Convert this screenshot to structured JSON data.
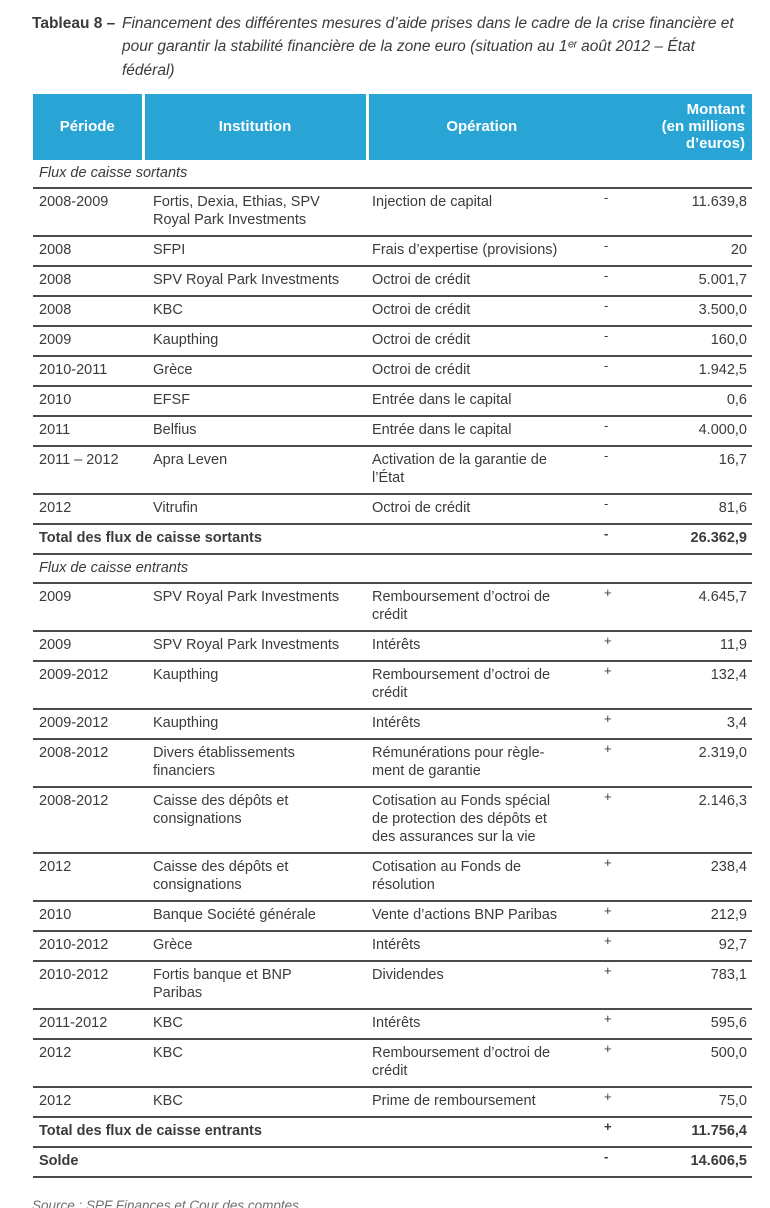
{
  "title": {
    "label": "Tableau 8 –",
    "text": "Financement des différentes mesures d’aide prises dans le cadre de la crise financière et pour garantir la stabilité financière de la zone euro (situation au 1ᵉʳ août 2012 – État fédéral)"
  },
  "table": {
    "columns": {
      "periode": "Période",
      "institution": "Institution",
      "operation": "Opération",
      "montant": "Montant\n(en millions\nd’euros)"
    },
    "sections": [
      {
        "label": "Flux de caisse sortants",
        "rows": [
          {
            "periode": "2008-2009",
            "institution": "Fortis, Dexia, Ethias, SPV\nRoyal Park Investments",
            "operation": "Injection de capital",
            "sign": "-",
            "montant": "11.639,8"
          },
          {
            "periode": "2008",
            "institution": "SFPI",
            "operation": "Frais d’expertise (provisions)",
            "sign": "-",
            "montant": "20"
          },
          {
            "periode": "2008",
            "institution": "SPV Royal Park Investments",
            "operation": "Octroi de crédit",
            "sign": "-",
            "montant": "5.001,7"
          },
          {
            "periode": "2008",
            "institution": "KBC",
            "operation": "Octroi de crédit",
            "sign": "-",
            "montant": "3.500,0"
          },
          {
            "periode": "2009",
            "institution": "Kaupthing",
            "operation": "Octroi de crédit",
            "sign": "-",
            "montant": "160,0"
          },
          {
            "periode": "2010-2011",
            "institution": "Grèce",
            "operation": "Octroi de crédit",
            "sign": "-",
            "montant": "1.942,5"
          },
          {
            "periode": "2010",
            "institution": "EFSF",
            "operation": "Entrée dans le capital",
            "sign": "",
            "montant": "0,6"
          },
          {
            "periode": "2011",
            "institution": "Belfius",
            "operation": "Entrée dans le capital",
            "sign": "-",
            "montant": "4.000,0"
          },
          {
            "periode": "2011 – 2012",
            "institution": "Apra Leven",
            "operation": "Activation de la garantie de\nl’État",
            "sign": "-",
            "montant": "16,7"
          },
          {
            "periode": "2012",
            "institution": "Vitrufin",
            "operation": "Octroi de crédit",
            "sign": "-",
            "montant": "81,6"
          }
        ],
        "total": {
          "label": "Total des flux de caisse sortants",
          "sign": "-",
          "montant": "26.362,9"
        }
      },
      {
        "label": "Flux de caisse entrants",
        "rows": [
          {
            "periode": "2009",
            "institution": "SPV Royal Park Investments",
            "operation": "Remboursement d’octroi de\ncrédit",
            "sign": "+",
            "montant": "4.645,7"
          },
          {
            "periode": "2009",
            "institution": "SPV Royal Park Investments",
            "operation": "Intérêts",
            "sign": "+",
            "montant": "11,9"
          },
          {
            "periode": "2009-2012",
            "institution": "Kaupthing",
            "operation": "Remboursement d’octroi de\ncrédit",
            "sign": "+",
            "montant": "132,4"
          },
          {
            "periode": "2009-2012",
            "institution": "Kaupthing",
            "operation": "Intérêts",
            "sign": "+",
            "montant": "3,4"
          },
          {
            "periode": "2008-2012",
            "institution": "Divers établissements\nfinanciers",
            "operation": "Rémunérations pour règle-\nment de garantie",
            "sign": "+",
            "montant": "2.319,0"
          },
          {
            "periode": "2008-2012",
            "institution": "Caisse des dépôts et\nconsignations",
            "operation": "Cotisation au Fonds spécial\nde protection des dépôts et\ndes assurances sur la vie",
            "sign": "+",
            "montant": "2.146,3"
          },
          {
            "periode": "2012",
            "institution": "Caisse des dépôts et\nconsignations",
            "operation": "Cotisation au Fonds de\nrésolution",
            "sign": "+",
            "montant": "238,4"
          },
          {
            "periode": "2010",
            "institution": "Banque Société générale",
            "operation": "Vente d’actions BNP Paribas",
            "sign": "+",
            "montant": "212,9"
          },
          {
            "periode": "2010-2012",
            "institution": "Grèce",
            "operation": "Intérêts",
            "sign": "+",
            "montant": "92,7"
          },
          {
            "periode": "2010-2012",
            "institution": "Fortis banque et BNP\nParibas",
            "operation": "Dividendes",
            "sign": "+",
            "montant": "783,1"
          },
          {
            "periode": "2011-2012",
            "institution": "KBC",
            "operation": "Intérêts",
            "sign": "+",
            "montant": "595,6"
          },
          {
            "periode": "2012",
            "institution": "KBC",
            "operation": "Remboursement d’octroi de\ncrédit",
            "sign": "+",
            "montant": "500,0"
          },
          {
            "periode": "2012",
            "institution": "KBC",
            "operation": "Prime de remboursement",
            "sign": "+",
            "montant": "75,0"
          }
        ],
        "total": {
          "label": "Total des flux de caisse entrants",
          "sign": "+",
          "montant": "11.756,4"
        }
      }
    ],
    "solde": {
      "label": "Solde",
      "sign": "-",
      "montant": "14.606,5"
    }
  },
  "source": "Source : SPF Finances et Cour des comptes",
  "colors": {
    "header_bg": "#29a5d5",
    "header_text": "#ffffff",
    "rule": "#4a4a48",
    "text": "#3b3b3a",
    "source_text": "#706f6e"
  }
}
